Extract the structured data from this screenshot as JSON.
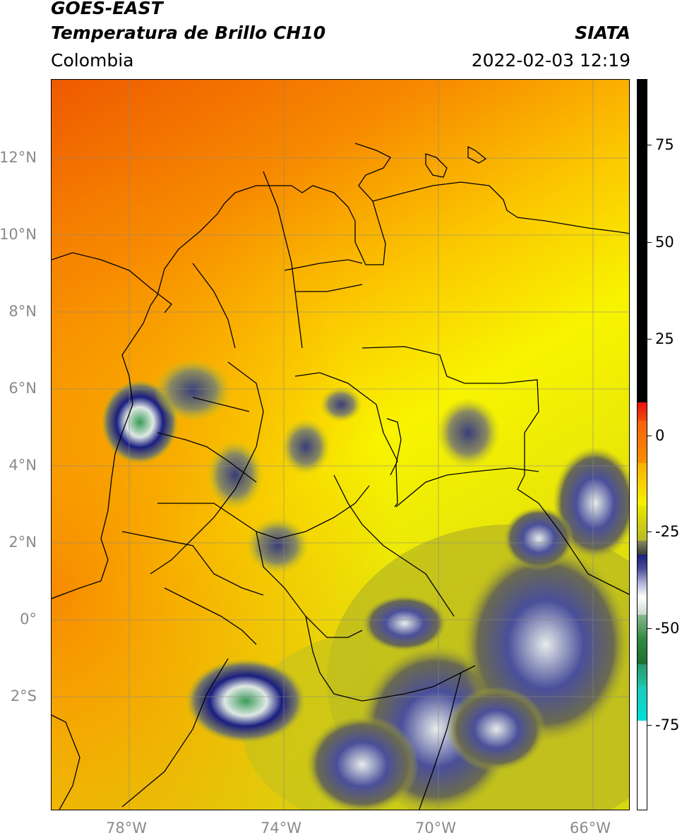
{
  "header": {
    "line1": "GOES-EAST",
    "line2": "Temperatura de Brillo CH10",
    "agency": "SIATA",
    "region": "Colombia",
    "datetime": "2022-02-03 12:19"
  },
  "map": {
    "lon_range": [
      -80,
      -64.9
    ],
    "lat_range": [
      -5.2,
      13.9
    ],
    "lat_labels": [
      "12°N",
      "10°N",
      "8°N",
      "6°N",
      "4°N",
      "2°N",
      "0°",
      "2°S"
    ],
    "lon_labels": [
      "78°W",
      "74°W",
      "70°W",
      "66°W"
    ]
  },
  "colorbar": {
    "ticks": [
      "75",
      "50",
      "25",
      "0",
      "-25",
      "-50",
      "-75"
    ],
    "colors": {
      "black": "#000000",
      "red": "#e8100c",
      "orange": "#f77b00",
      "yellow": "#f8f400",
      "olive": "#b8b824",
      "navy": "#1a1e80",
      "white": "#ffffff",
      "green": "#2e8b3e",
      "cyan": "#00e0d8"
    }
  }
}
